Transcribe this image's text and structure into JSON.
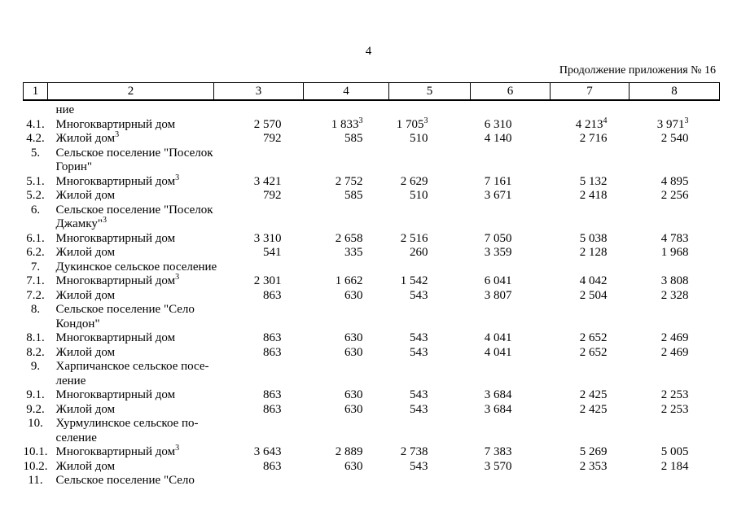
{
  "page": {
    "number": "4",
    "continuation_note": "Продолжение приложения № 16"
  },
  "table": {
    "header_cols": [
      "1",
      "2",
      "3",
      "4",
      "5",
      "6",
      "7",
      "8"
    ],
    "rows": [
      {
        "num": "",
        "lines": [
          "ние"
        ]
      },
      {
        "num": "4.1.",
        "lines": [
          "Многоквартирный дом"
        ],
        "values": [
          "2 570",
          {
            "v": "1 833",
            "sup": "3"
          },
          {
            "v": "1 705",
            "sup": "3"
          },
          "6 310",
          {
            "v": "4 213",
            "sup": "4"
          },
          {
            "v": "3 971",
            "sup": "3"
          }
        ]
      },
      {
        "num": "4.2.",
        "lines": [
          "Жилой дом"
        ],
        "sup": "3",
        "values": [
          "792",
          "585",
          "510",
          "4 140",
          "2 716",
          "2 540"
        ]
      },
      {
        "num": "5.",
        "lines": [
          "Сельское поселение \"Поселок",
          "Горин\""
        ]
      },
      {
        "num": "5.1.",
        "lines": [
          "Многоквартирный дом"
        ],
        "sup": "3",
        "values": [
          "3 421",
          "2 752",
          "2 629",
          "7 161",
          "5 132",
          "4 895"
        ]
      },
      {
        "num": "5.2.",
        "lines": [
          "Жилой дом"
        ],
        "values": [
          "792",
          "585",
          "510",
          "3 671",
          "2 418",
          "2 256"
        ]
      },
      {
        "num": "6.",
        "lines": [
          "Сельское поселение \"Поселок",
          "Джамку\""
        ],
        "sup": "3"
      },
      {
        "num": "6.1.",
        "lines": [
          "Многоквартирный дом"
        ],
        "values": [
          "3 310",
          "2 658",
          "2 516",
          "7 050",
          "5 038",
          "4 783"
        ]
      },
      {
        "num": "6.2.",
        "lines": [
          "Жилой дом"
        ],
        "values": [
          "541",
          "335",
          "260",
          "3 359",
          "2 128",
          "1 968"
        ]
      },
      {
        "num": "7.",
        "lines": [
          "Дукинское сельское поселение"
        ]
      },
      {
        "num": "7.1.",
        "lines": [
          "Многоквартирный дом"
        ],
        "sup": "3",
        "values": [
          "2 301",
          "1 662",
          "1 542",
          "6 041",
          "4 042",
          "3 808"
        ]
      },
      {
        "num": "7.2.",
        "lines": [
          "Жилой дом"
        ],
        "values": [
          "863",
          "630",
          "543",
          "3 807",
          "2 504",
          "2 328"
        ]
      },
      {
        "num": "8.",
        "lines": [
          "Сельское поселение \"Село",
          "Кондон\""
        ]
      },
      {
        "num": "8.1.",
        "lines": [
          "Многоквартирный дом"
        ],
        "values": [
          "863",
          "630",
          "543",
          "4 041",
          "2 652",
          "2 469"
        ]
      },
      {
        "num": "8.2.",
        "lines": [
          "Жилой дом"
        ],
        "values": [
          "863",
          "630",
          "543",
          "4 041",
          "2 652",
          "2 469"
        ]
      },
      {
        "num": "9.",
        "lines": [
          "Харпичанское сельское посе-",
          "ление"
        ]
      },
      {
        "num": "9.1.",
        "lines": [
          "Многоквартирный дом"
        ],
        "values": [
          "863",
          "630",
          "543",
          "3 684",
          "2 425",
          "2 253"
        ]
      },
      {
        "num": "9.2.",
        "lines": [
          "Жилой дом"
        ],
        "values": [
          "863",
          "630",
          "543",
          "3 684",
          "2 425",
          "2 253"
        ]
      },
      {
        "num": "10.",
        "lines": [
          "Хурмулинское сельское по-",
          "селение"
        ]
      },
      {
        "num": "10.1.",
        "lines": [
          "Многоквартирный дом"
        ],
        "sup": "3",
        "values": [
          "3 643",
          "2 889",
          "2 738",
          "7 383",
          "5 269",
          "5 005"
        ]
      },
      {
        "num": "10.2.",
        "lines": [
          "Жилой дом"
        ],
        "values": [
          "863",
          "630",
          "543",
          "3 570",
          "2 353",
          "2 184"
        ]
      },
      {
        "num": "11.",
        "lines": [
          "Сельское поселение \"Село"
        ]
      }
    ]
  }
}
